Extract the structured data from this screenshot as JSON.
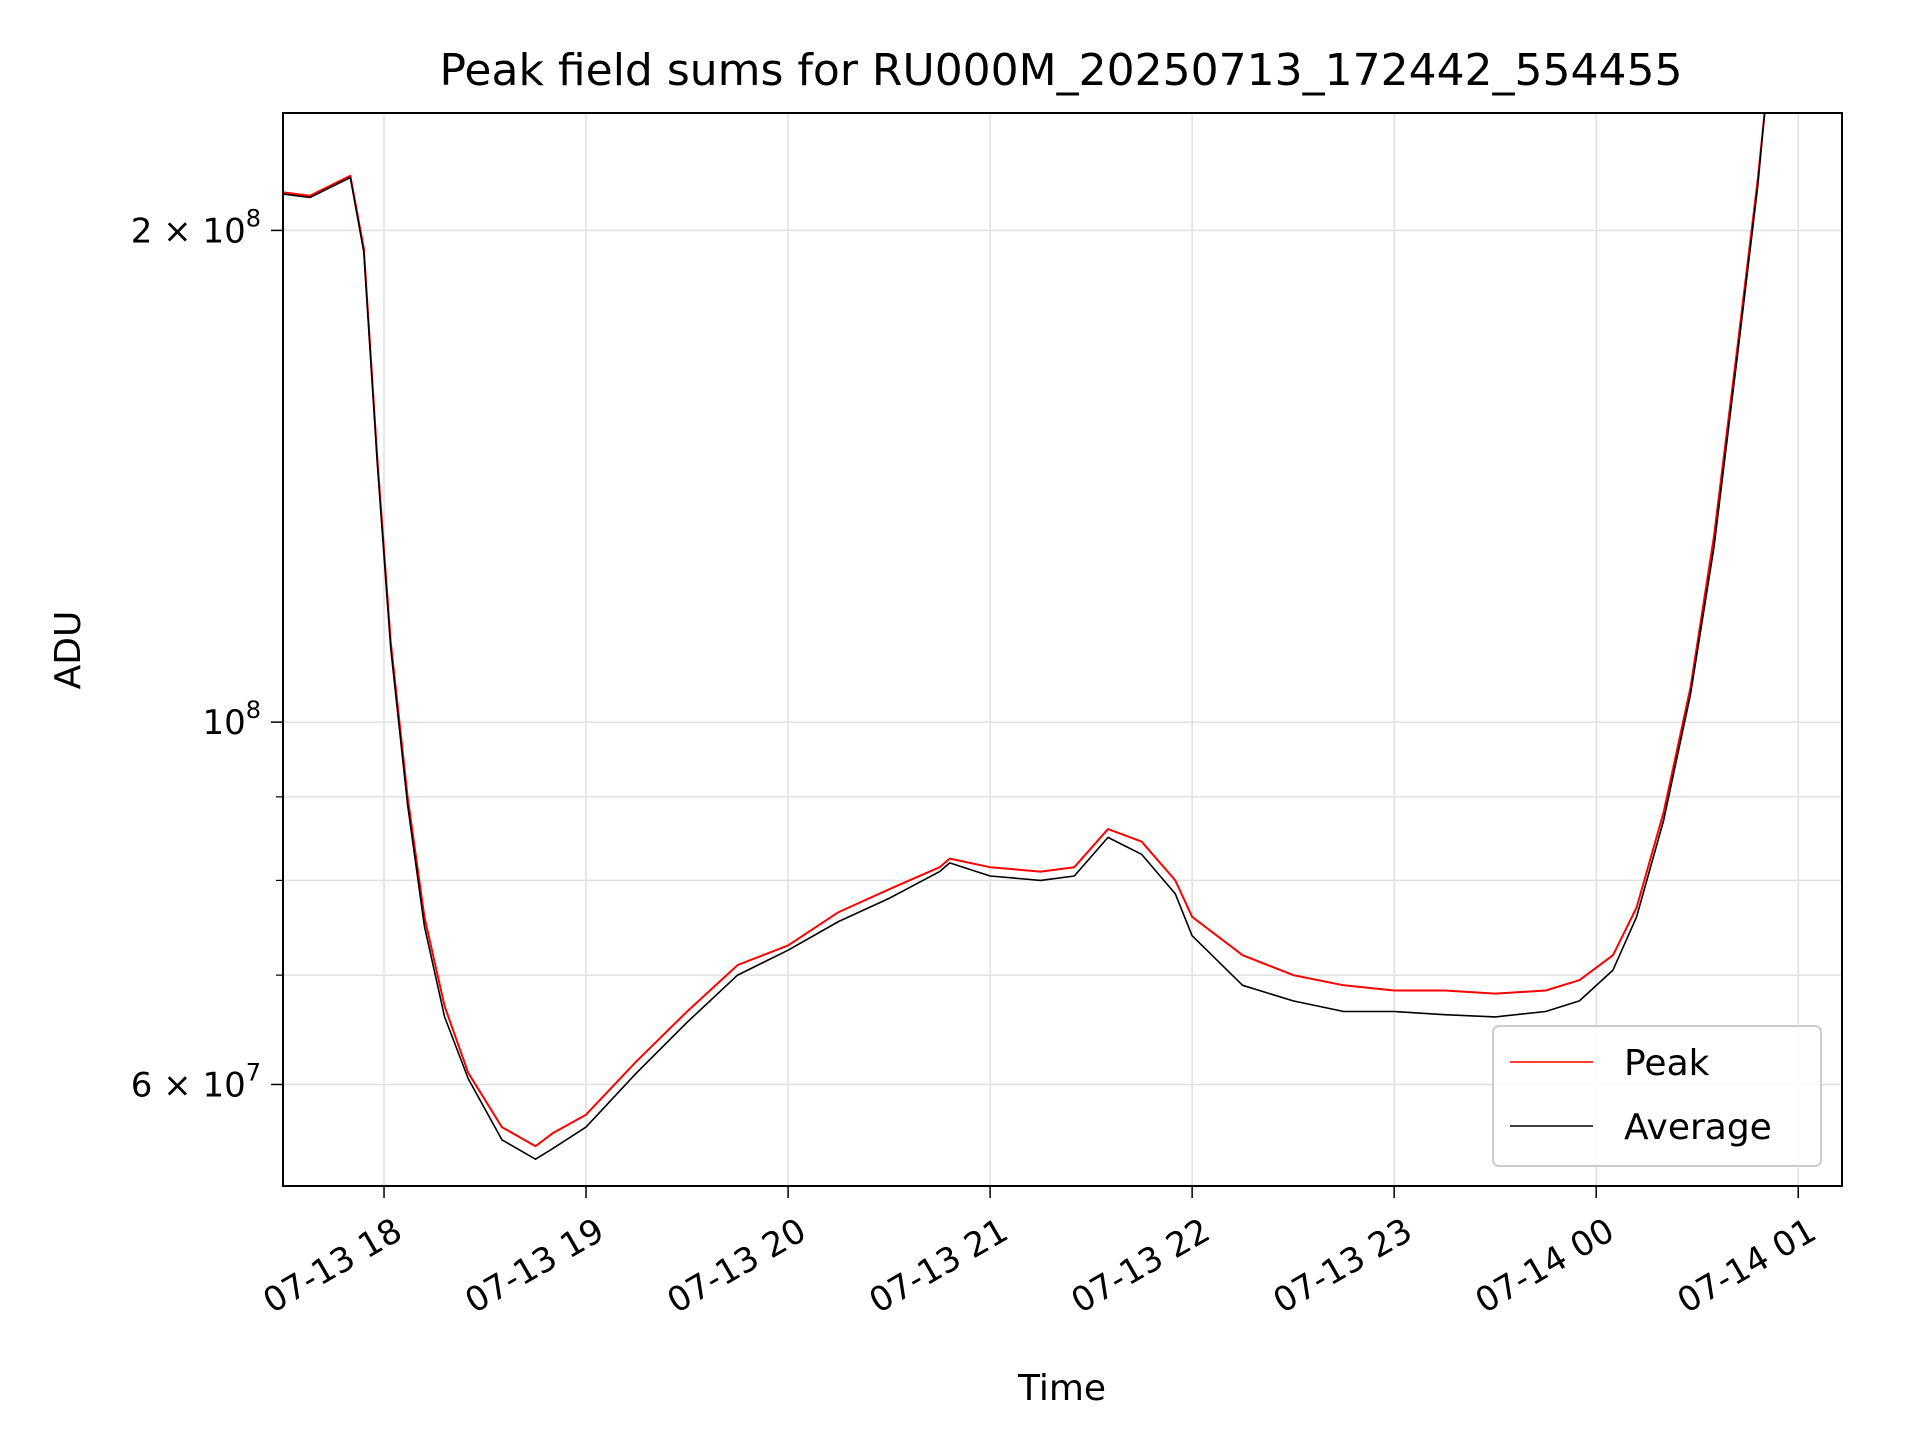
{
  "chart_data": {
    "type": "line",
    "title": "Peak field sums for RU000M_20250713_172442_554455",
    "xlabel": "Time",
    "ylabel": "ADU",
    "x_range": [
      "2025-07-13 17:30",
      "2025-07-14 01:13"
    ],
    "ylim": [
      52000000,
      236000000
    ],
    "yscale": "log",
    "grid": true,
    "legend_position": "lower right",
    "x_ticks": [
      {
        "value": "2025-07-13 18:00",
        "label": "07-13 18"
      },
      {
        "value": "2025-07-13 19:00",
        "label": "07-13 19"
      },
      {
        "value": "2025-07-13 20:00",
        "label": "07-13 20"
      },
      {
        "value": "2025-07-13 21:00",
        "label": "07-13 21"
      },
      {
        "value": "2025-07-13 22:00",
        "label": "07-13 22"
      },
      {
        "value": "2025-07-13 23:00",
        "label": "07-13 23"
      },
      {
        "value": "2025-07-14 00:00",
        "label": "07-14 00"
      },
      {
        "value": "2025-07-14 01:00",
        "label": "07-14 01"
      }
    ],
    "y_ticks": [
      {
        "value": 60000000,
        "label": "6 × 10",
        "exp": "7"
      },
      {
        "value": 100000000,
        "label": "10",
        "exp": "8"
      },
      {
        "value": 200000000,
        "label": "2 × 10",
        "exp": "8"
      }
    ],
    "y_minor_ticks": [
      70000000,
      80000000,
      90000000
    ],
    "series": [
      {
        "name": "Peak",
        "color": "#ff0000",
        "x": [
          "2025-07-13 17:30",
          "2025-07-13 17:38",
          "2025-07-13 17:46",
          "2025-07-13 17:50",
          "2025-07-13 17:54",
          "2025-07-13 17:58",
          "2025-07-13 18:02",
          "2025-07-13 18:07",
          "2025-07-13 18:12",
          "2025-07-13 18:18",
          "2025-07-13 18:25",
          "2025-07-13 18:35",
          "2025-07-13 18:45",
          "2025-07-13 18:50",
          "2025-07-13 19:00",
          "2025-07-13 19:15",
          "2025-07-13 19:30",
          "2025-07-13 19:45",
          "2025-07-13 20:00",
          "2025-07-13 20:15",
          "2025-07-13 20:30",
          "2025-07-13 20:45",
          "2025-07-13 20:48",
          "2025-07-13 21:00",
          "2025-07-13 21:15",
          "2025-07-13 21:25",
          "2025-07-13 21:35",
          "2025-07-13 21:45",
          "2025-07-13 21:55",
          "2025-07-13 22:00",
          "2025-07-13 22:15",
          "2025-07-13 22:30",
          "2025-07-13 22:45",
          "2025-07-13 23:00",
          "2025-07-13 23:15",
          "2025-07-13 23:30",
          "2025-07-13 23:45",
          "2025-07-13 23:55",
          "2025-07-14 00:05",
          "2025-07-14 00:12",
          "2025-07-14 00:20",
          "2025-07-14 00:28",
          "2025-07-14 00:35",
          "2025-07-14 00:42",
          "2025-07-14 00:48",
          "2025-07-14 00:50"
        ],
        "values": [
          211000000,
          210000000,
          214000000,
          216000000,
          195000000,
          145000000,
          112000000,
          90000000,
          76000000,
          67000000,
          61000000,
          56500000,
          55000000,
          56000000,
          57500000,
          62000000,
          66500000,
          71000000,
          73000000,
          76500000,
          79000000,
          81500000,
          82500000,
          81500000,
          81000000,
          81500000,
          86000000,
          84500000,
          80000000,
          76000000,
          72000000,
          70000000,
          69000000,
          68500000,
          68500000,
          68200000,
          68500000,
          69500000,
          72000000,
          77000000,
          88000000,
          105000000,
          130000000,
          170000000,
          215000000,
          236000000
        ]
      },
      {
        "name": "Average",
        "color": "#000000",
        "x": [
          "2025-07-13 17:30",
          "2025-07-13 17:38",
          "2025-07-13 17:46",
          "2025-07-13 17:50",
          "2025-07-13 17:54",
          "2025-07-13 17:58",
          "2025-07-13 18:02",
          "2025-07-13 18:07",
          "2025-07-13 18:12",
          "2025-07-13 18:18",
          "2025-07-13 18:25",
          "2025-07-13 18:35",
          "2025-07-13 18:45",
          "2025-07-13 18:50",
          "2025-07-13 19:00",
          "2025-07-13 19:15",
          "2025-07-13 19:30",
          "2025-07-13 19:45",
          "2025-07-13 20:00",
          "2025-07-13 20:15",
          "2025-07-13 20:30",
          "2025-07-13 20:45",
          "2025-07-13 20:48",
          "2025-07-13 21:00",
          "2025-07-13 21:15",
          "2025-07-13 21:25",
          "2025-07-13 21:35",
          "2025-07-13 21:45",
          "2025-07-13 21:55",
          "2025-07-13 22:00",
          "2025-07-13 22:15",
          "2025-07-13 22:30",
          "2025-07-13 22:45",
          "2025-07-13 23:00",
          "2025-07-13 23:15",
          "2025-07-13 23:30",
          "2025-07-13 23:45",
          "2025-07-13 23:55",
          "2025-07-14 00:05",
          "2025-07-14 00:12",
          "2025-07-14 00:20",
          "2025-07-14 00:28",
          "2025-07-14 00:35",
          "2025-07-14 00:42",
          "2025-07-14 00:48",
          "2025-07-14 00:50"
        ],
        "values": [
          210500000,
          209500000,
          213500000,
          215500000,
          194000000,
          144000000,
          111000000,
          89000000,
          75000000,
          66000000,
          60500000,
          55500000,
          54000000,
          54800000,
          56500000,
          61000000,
          65500000,
          70000000,
          72500000,
          75500000,
          78000000,
          81000000,
          82000000,
          80500000,
          80000000,
          80500000,
          85000000,
          83000000,
          78500000,
          74000000,
          69000000,
          67500000,
          66500000,
          66500000,
          66200000,
          66000000,
          66500000,
          67500000,
          70500000,
          76000000,
          87000000,
          104000000,
          128000000,
          168000000,
          213000000,
          236000000
        ]
      }
    ]
  }
}
